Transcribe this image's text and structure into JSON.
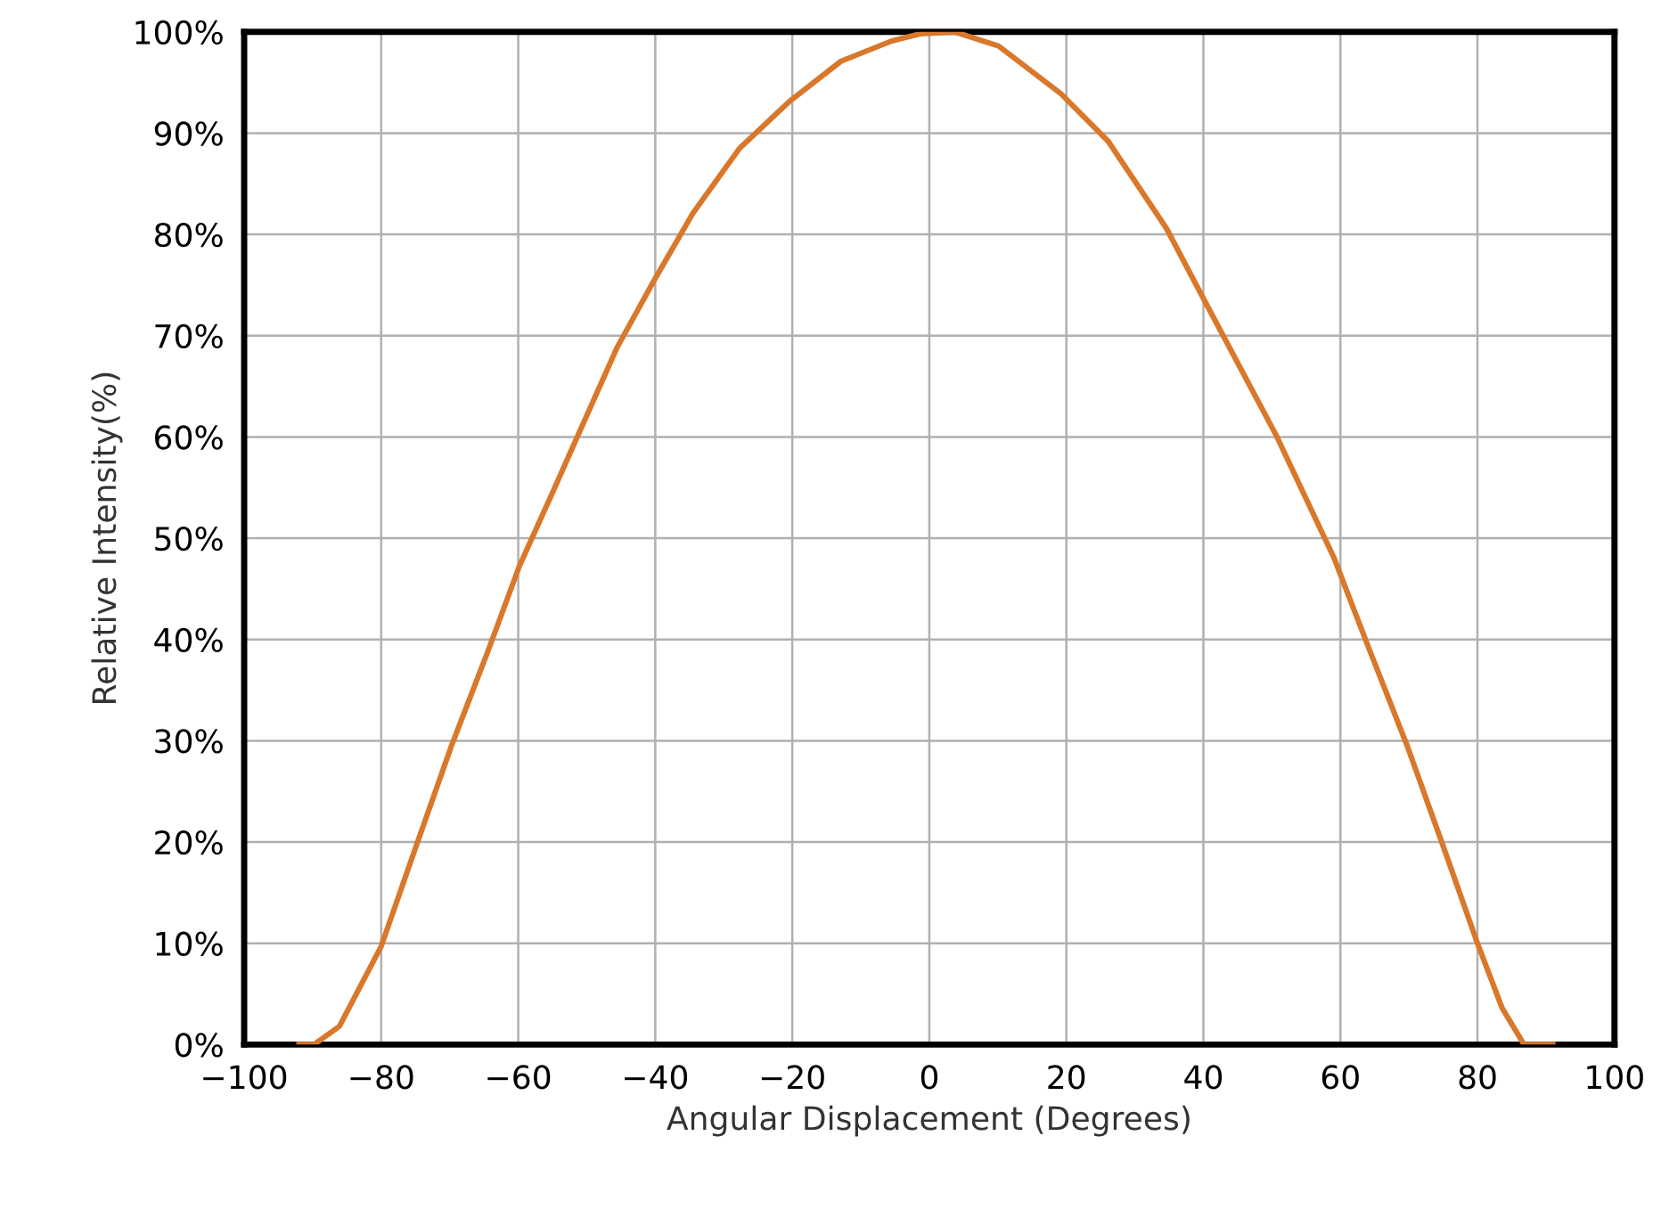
{
  "chart_data": {
    "type": "line",
    "xlabel": "Angular Displacement (Degrees)",
    "ylabel": "Relative Intensity(%)",
    "x": [
      -92,
      -89.8,
      -86.1,
      -80,
      -75,
      -69.8,
      -64.5,
      -59.8,
      -55,
      -50.8,
      -45.6,
      -40.3,
      -34.5,
      -27.7,
      -20.3,
      -12.9,
      -5.5,
      -1.3,
      3.7,
      10.1,
      19.2,
      26.1,
      34.6,
      41,
      50.6,
      59.1,
      64.4,
      69.8,
      75.1,
      80,
      83.6,
      86.8,
      91
    ],
    "series": [
      {
        "color": "#d9782b",
        "values": [
          0,
          0,
          1.8,
          9.7,
          19.4,
          29.4,
          38.7,
          47.3,
          54.5,
          60.9,
          68.8,
          75.3,
          82.1,
          88.5,
          93.2,
          97.1,
          99.1,
          99.8,
          100,
          98.6,
          93.9,
          89.2,
          80.6,
          72.4,
          60.2,
          48,
          38.7,
          29.4,
          19.4,
          10,
          3.6,
          0,
          0
        ]
      }
    ],
    "xlim": [
      -100,
      100
    ],
    "xticks": [
      -100,
      -80,
      -60,
      -40,
      -20,
      0,
      20,
      40,
      60,
      80,
      100
    ],
    "ylim": [
      0,
      100
    ],
    "yticks": [
      {
        "value": 0,
        "label": "0%"
      },
      {
        "value": 10,
        "label": "10%"
      },
      {
        "value": 20,
        "label": "20%"
      },
      {
        "value": 30,
        "label": "30%"
      },
      {
        "value": 40,
        "label": "40%"
      },
      {
        "value": 50,
        "label": "50%"
      },
      {
        "value": 60,
        "label": "60%"
      },
      {
        "value": 70,
        "label": "70%"
      },
      {
        "value": 80,
        "label": "80%"
      },
      {
        "value": 90,
        "label": "90%"
      },
      {
        "value": 100,
        "label": "100%"
      }
    ],
    "grid": true,
    "marker": "none",
    "line_style": "solid"
  }
}
